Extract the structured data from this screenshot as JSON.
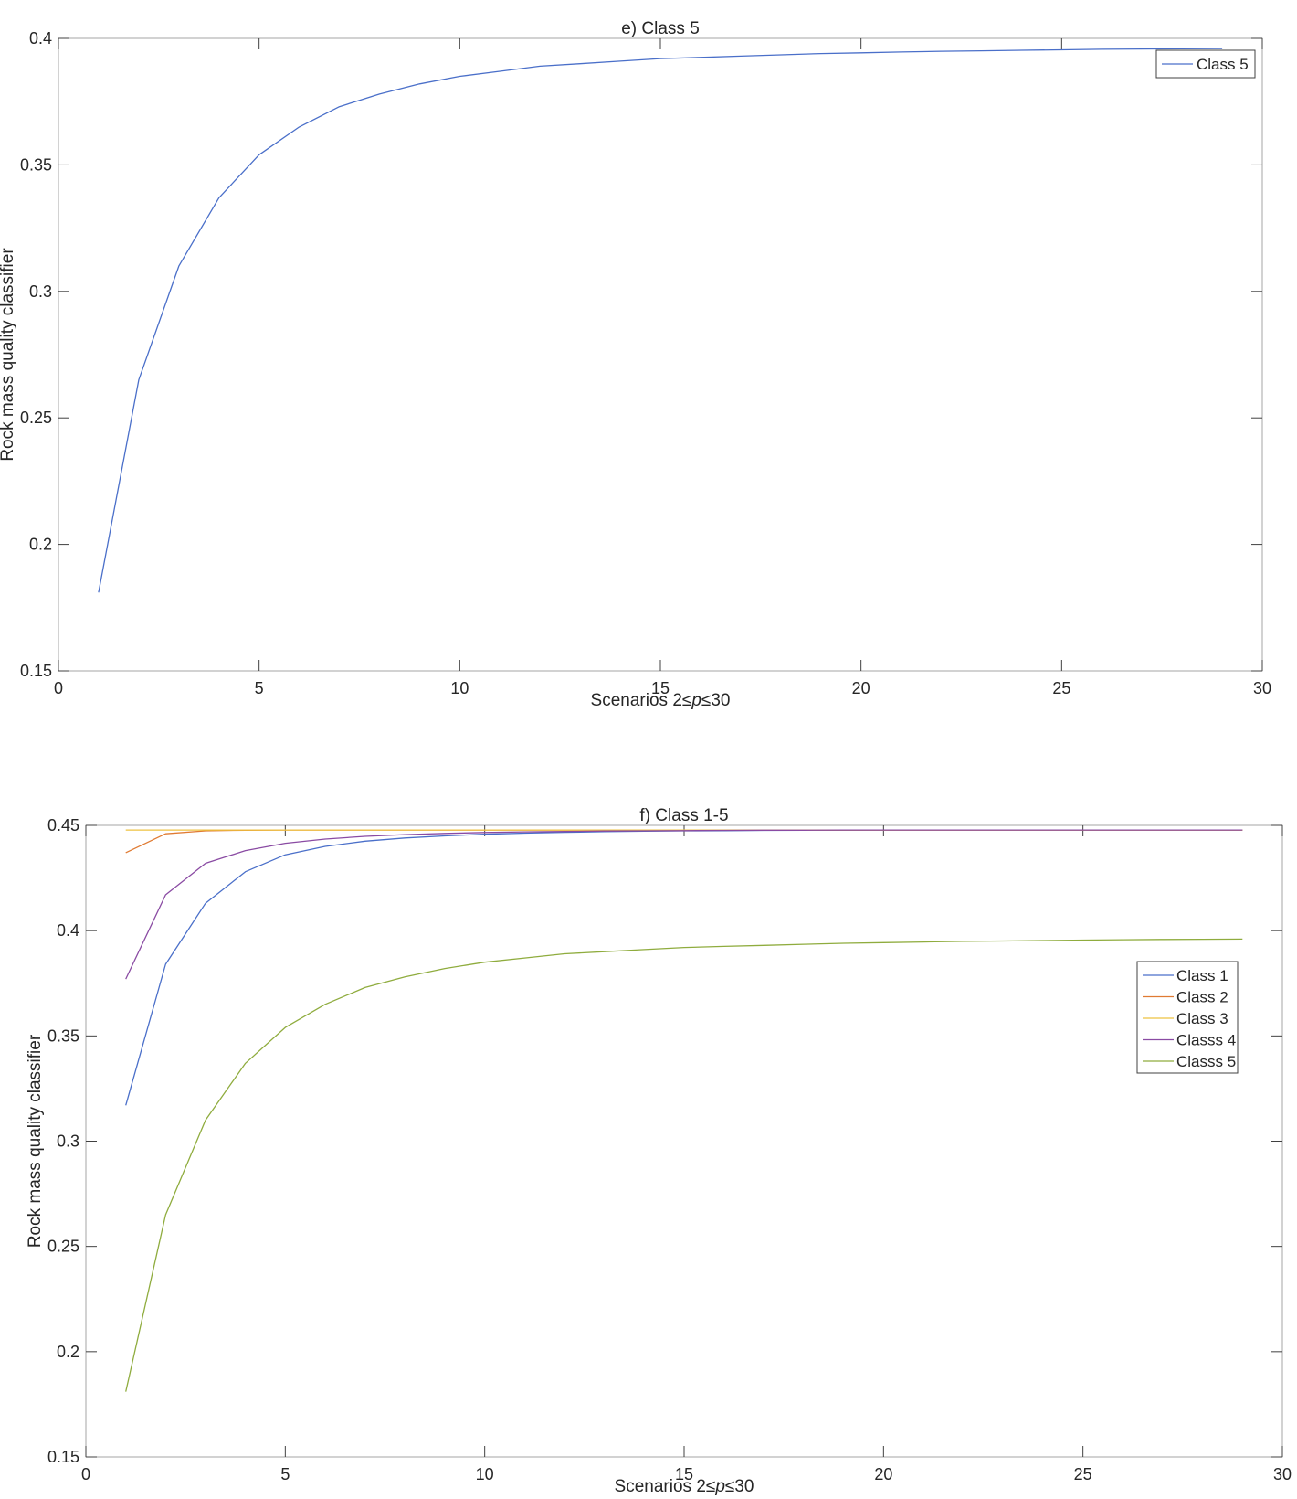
{
  "chart_data": [
    {
      "type": "line",
      "title": "e) Class 5",
      "xlabel": "Scenarios 2≤p≤30",
      "ylabel": "Rock mass quality classifier",
      "xlim": [
        0,
        30
      ],
      "ylim": [
        0.15,
        0.4
      ],
      "xticks": [
        "0",
        "5",
        "10",
        "15",
        "20",
        "25",
        "30"
      ],
      "yticks": [
        "0.15",
        "0.2",
        "0.25",
        "0.3",
        "0.35",
        "0.4"
      ],
      "legend_position": "top-right",
      "grid": false,
      "series": [
        {
          "name": "Class 5",
          "color": "#4a6fc9",
          "x": [
            1,
            2,
            3,
            4,
            5,
            6,
            7,
            8,
            9,
            10,
            11,
            12,
            13,
            14,
            15,
            16,
            17,
            18,
            19,
            20,
            21,
            22,
            23,
            24,
            25,
            26,
            27,
            28,
            29
          ],
          "y": [
            0.181,
            0.265,
            0.31,
            0.337,
            0.354,
            0.365,
            0.373,
            0.378,
            0.382,
            0.385,
            0.387,
            0.389,
            0.39,
            0.391,
            0.392,
            0.3925,
            0.393,
            0.3935,
            0.394,
            0.3943,
            0.3946,
            0.3949,
            0.3951,
            0.3953,
            0.3955,
            0.3957,
            0.3958,
            0.3959,
            0.396
          ]
        }
      ]
    },
    {
      "type": "line",
      "title": "f) Class 1-5",
      "xlabel": "Scenarios 2≤p≤30",
      "ylabel": "Rock mass quality classifier",
      "xlim": [
        0,
        30
      ],
      "ylim": [
        0.15,
        0.45
      ],
      "xticks": [
        "0",
        "5",
        "10",
        "15",
        "20",
        "25",
        "30"
      ],
      "yticks": [
        "0.15",
        "0.2",
        "0.25",
        "0.3",
        "0.35",
        "0.4",
        "0.45"
      ],
      "legend_position": "right",
      "grid": false,
      "series": [
        {
          "name": "Class 1",
          "color": "#4a6fc9",
          "x": [
            1,
            2,
            3,
            4,
            5,
            6,
            7,
            8,
            9,
            10,
            11,
            12,
            13,
            14,
            15,
            16,
            17,
            18,
            19,
            20,
            21,
            22,
            23,
            24,
            25,
            26,
            27,
            28,
            29
          ],
          "y": [
            0.317,
            0.384,
            0.413,
            0.428,
            0.436,
            0.44,
            0.4425,
            0.444,
            0.445,
            0.4458,
            0.4463,
            0.4467,
            0.447,
            0.4472,
            0.4474,
            0.4475,
            0.4476,
            0.4477,
            0.4477,
            0.4478,
            0.4478,
            0.4478,
            0.4478,
            0.4478,
            0.4478,
            0.4478,
            0.4478,
            0.4478,
            0.4478
          ]
        },
        {
          "name": "Class 2",
          "color": "#e07b33",
          "x": [
            1,
            2,
            3,
            4,
            5,
            6,
            7,
            8,
            9,
            10,
            11,
            12,
            13,
            14,
            15,
            16,
            17,
            18,
            19,
            20,
            21,
            22,
            23,
            24,
            25,
            26,
            27,
            28,
            29
          ],
          "y": [
            0.437,
            0.446,
            0.4474,
            0.4477,
            0.4478,
            0.4478,
            0.4478,
            0.4478,
            0.4478,
            0.4478,
            0.4478,
            0.4478,
            0.4478,
            0.4478,
            0.4478,
            0.4478,
            0.4478,
            0.4478,
            0.4478,
            0.4478,
            0.4478,
            0.4478,
            0.4478,
            0.4478,
            0.4478,
            0.4478,
            0.4478,
            0.4478,
            0.4478
          ]
        },
        {
          "name": "Class 3",
          "color": "#edc240",
          "x": [
            1,
            2,
            3,
            4,
            5,
            6,
            7,
            8,
            9,
            10,
            11,
            12,
            13,
            14,
            15,
            16,
            17,
            18,
            19,
            20,
            21,
            22,
            23,
            24,
            25,
            26,
            27,
            28,
            29
          ],
          "y": [
            0.4478,
            0.4478,
            0.4478,
            0.4478,
            0.4478,
            0.4478,
            0.4478,
            0.4478,
            0.4478,
            0.4478,
            0.4478,
            0.4478,
            0.4478,
            0.4478,
            0.4478,
            0.4478,
            0.4478,
            0.4478,
            0.4478,
            0.4478,
            0.4478,
            0.4478,
            0.4478,
            0.4478,
            0.4478,
            0.4478,
            0.4478,
            0.4478,
            0.4478
          ]
        },
        {
          "name": "Classs 4",
          "color": "#8a4ba3",
          "x": [
            1,
            2,
            3,
            4,
            5,
            6,
            7,
            8,
            9,
            10,
            11,
            12,
            13,
            14,
            15,
            16,
            17,
            18,
            19,
            20,
            21,
            22,
            23,
            24,
            25,
            26,
            27,
            28,
            29
          ],
          "y": [
            0.377,
            0.417,
            0.432,
            0.438,
            0.4415,
            0.4435,
            0.4448,
            0.4456,
            0.4462,
            0.4466,
            0.4469,
            0.4471,
            0.4473,
            0.4474,
            0.4475,
            0.4476,
            0.4477,
            0.4477,
            0.4478,
            0.4478,
            0.4478,
            0.4478,
            0.4478,
            0.4478,
            0.4478,
            0.4478,
            0.4478,
            0.4478,
            0.4478
          ]
        },
        {
          "name": "Classs 5",
          "color": "#8fac3e",
          "x": [
            1,
            2,
            3,
            4,
            5,
            6,
            7,
            8,
            9,
            10,
            11,
            12,
            13,
            14,
            15,
            16,
            17,
            18,
            19,
            20,
            21,
            22,
            23,
            24,
            25,
            26,
            27,
            28,
            29
          ],
          "y": [
            0.181,
            0.265,
            0.31,
            0.337,
            0.354,
            0.365,
            0.373,
            0.378,
            0.382,
            0.385,
            0.387,
            0.389,
            0.39,
            0.391,
            0.392,
            0.3925,
            0.393,
            0.3935,
            0.394,
            0.3943,
            0.3946,
            0.3949,
            0.3951,
            0.3953,
            0.3955,
            0.3957,
            0.3958,
            0.3959,
            0.396
          ]
        }
      ]
    }
  ]
}
